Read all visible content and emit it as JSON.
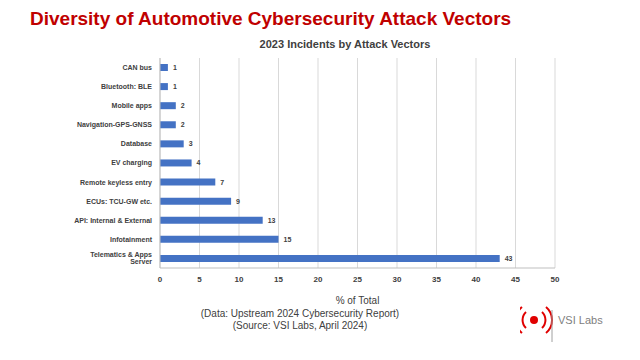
{
  "chart_data": {
    "type": "bar",
    "orientation": "horizontal",
    "title": "Diversity of Automotive Cybersecurity Attack Vectors",
    "subtitle": "2023 Incidents by Attack Vectors",
    "x_label": "% of Total",
    "categories": [
      "CAN bus",
      "Bluetooth: BLE",
      "Mobile apps",
      "Navigation-GPS-GNSS",
      "Database",
      "EV charging",
      "Remote keyless entry",
      "ECUs: TCU-GW etc.",
      "API: Internal & External",
      "Infotainment",
      "Telematics & Apps Server"
    ],
    "values": [
      1,
      1,
      2,
      2,
      3,
      4,
      7,
      9,
      13,
      15,
      43
    ],
    "color": "#4472c4",
    "xlim": [
      0,
      50
    ],
    "xticks": [
      0,
      5,
      10,
      15,
      20,
      25,
      30,
      35,
      40,
      45,
      50
    ],
    "grid": true,
    "data_labels": true,
    "annotations": [
      "(Data: Upstream 2024 Cybersecurity Report)",
      "(Source: VSI Labs, April 2024)",
      "VSI Labs"
    ]
  }
}
